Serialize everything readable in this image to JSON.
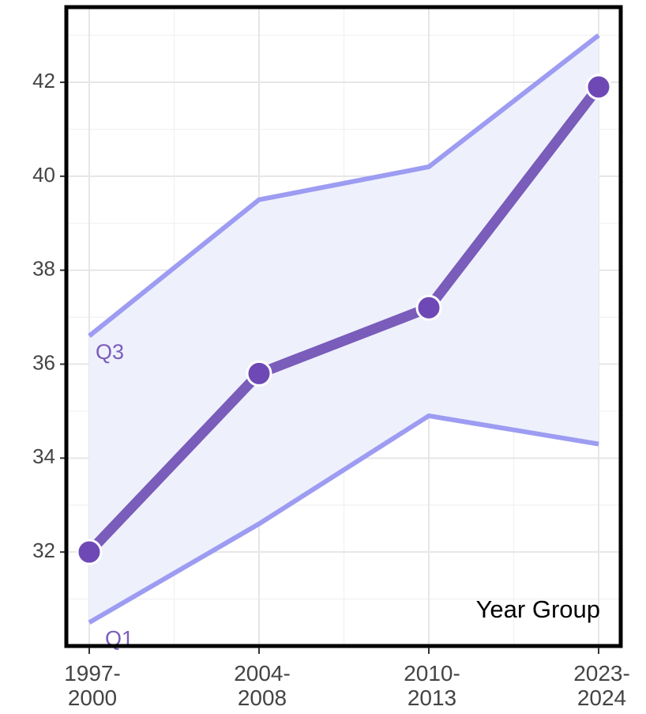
{
  "chart_data": {
    "type": "line",
    "x_label": "Year Group",
    "categories": [
      "1997-2000",
      "2004-2008",
      "2010-2013",
      "2023-2024"
    ],
    "series": [
      {
        "name": "Q3",
        "color": "#9d9cf2",
        "values": [
          36.6,
          39.5,
          40.2,
          43.0
        ]
      },
      {
        "name": "Q1",
        "color": "#9d9cf2",
        "values": [
          30.5,
          32.6,
          34.9,
          34.3
        ]
      }
    ],
    "median": {
      "color": "#7a5cbb",
      "values": [
        32.0,
        35.8,
        37.2,
        41.9
      ]
    },
    "band_color": "#eef1fc",
    "label_color": "#7a5cbb",
    "ylim": [
      30.0,
      43.6
    ],
    "yticks": [
      32,
      34,
      36,
      38,
      40,
      42
    ],
    "grid": true
  }
}
